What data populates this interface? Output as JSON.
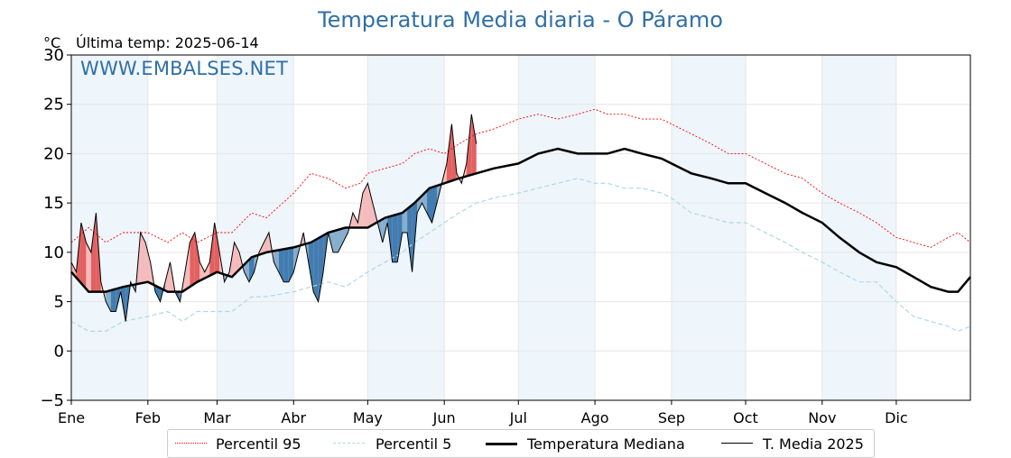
{
  "title": "Temperatura Media diaria - O Páramo",
  "unit_label": "°C",
  "last_temp_label": "Última temp: 2025-06-14",
  "watermark": "WWW.EMBALSES.NET",
  "legend": [
    {
      "label": "Percentil 95",
      "color": "#ff0000",
      "style": "dotted"
    },
    {
      "label": "Percentil 5",
      "color": "#add8e6",
      "style": "dashed"
    },
    {
      "label": "Temperatura Mediana",
      "color": "#000000",
      "style": "solid-thick"
    },
    {
      "label": "T. Media 2025",
      "color": "#000000",
      "style": "solid-thin"
    }
  ],
  "colors": {
    "above_fill": "#f4b5b5",
    "above_fill_strong": "#e05050",
    "below_fill": "#7aa6c8",
    "below_fill_strong": "#2f6fa7",
    "band": "#eef5fb",
    "title": "#2f6fa7"
  },
  "chart_data": {
    "type": "line",
    "x_unit": "day of year",
    "xlim": [
      1,
      365
    ],
    "ylim": [
      -5,
      30
    ],
    "yticks": [
      -5,
      0,
      5,
      10,
      15,
      20,
      25,
      30
    ],
    "ytick_labels": [
      "−5",
      "0",
      "5",
      "10",
      "15",
      "20",
      "25",
      "30"
    ],
    "months": [
      {
        "label": "Ene",
        "day": 1
      },
      {
        "label": "Feb",
        "day": 32
      },
      {
        "label": "Mar",
        "day": 60
      },
      {
        "label": "Abr",
        "day": 91
      },
      {
        "label": "May",
        "day": 121
      },
      {
        "label": "Jun",
        "day": 152
      },
      {
        "label": "Jul",
        "day": 182
      },
      {
        "label": "Ago",
        "day": 213
      },
      {
        "label": "Sep",
        "day": 244
      },
      {
        "label": "Oct",
        "day": 274
      },
      {
        "label": "Nov",
        "day": 305
      },
      {
        "label": "Dic",
        "day": 335
      }
    ],
    "grid": true,
    "series": [
      {
        "name": "Percentil 95",
        "x": [
          1,
          8,
          15,
          22,
          32,
          40,
          46,
          52,
          60,
          66,
          74,
          80,
          91,
          98,
          105,
          112,
          118,
          121,
          128,
          135,
          140,
          146,
          152,
          158,
          165,
          172,
          182,
          190,
          198,
          206,
          213,
          218,
          225,
          232,
          240,
          244,
          252,
          260,
          267,
          274,
          282,
          290,
          297,
          305,
          312,
          320,
          327,
          335,
          342,
          349,
          356,
          360,
          365
        ],
        "y": [
          11,
          12.5,
          11,
          12,
          12,
          11,
          12,
          11,
          12,
          12,
          14,
          13.5,
          16,
          18,
          17.5,
          16.5,
          17,
          18,
          18.5,
          19,
          20,
          20.5,
          20,
          21,
          22,
          22.5,
          23.5,
          24,
          23.5,
          24,
          24.5,
          24,
          24,
          23.5,
          23.5,
          23,
          22,
          21,
          20,
          20,
          19,
          18,
          17.5,
          16,
          15,
          14,
          13,
          11.5,
          11,
          10.5,
          11.5,
          12,
          11
        ]
      },
      {
        "name": "Percentil 5",
        "x": [
          1,
          8,
          15,
          22,
          32,
          40,
          46,
          52,
          60,
          66,
          74,
          80,
          91,
          98,
          105,
          112,
          118,
          121,
          128,
          135,
          140,
          146,
          152,
          158,
          165,
          172,
          182,
          190,
          198,
          206,
          213,
          218,
          225,
          232,
          240,
          244,
          252,
          260,
          267,
          274,
          282,
          290,
          297,
          305,
          312,
          320,
          327,
          335,
          342,
          349,
          356,
          360,
          365
        ],
        "y": [
          3,
          2,
          2,
          3,
          3.5,
          4,
          3,
          4,
          4,
          4,
          5.5,
          5.5,
          6,
          6.5,
          7,
          6.5,
          7.5,
          8,
          9,
          10,
          11,
          12,
          13,
          14,
          15,
          15.5,
          16,
          16.5,
          17,
          17.5,
          17,
          17,
          16.5,
          16.5,
          16,
          15.5,
          14,
          13.5,
          13,
          13,
          12,
          11,
          10,
          9,
          8,
          7,
          7,
          5,
          3.5,
          3,
          2.5,
          2,
          2.5
        ]
      },
      {
        "name": "Temperatura Mediana",
        "x": [
          1,
          8,
          15,
          22,
          32,
          40,
          46,
          52,
          60,
          66,
          74,
          80,
          91,
          98,
          105,
          112,
          118,
          121,
          128,
          135,
          140,
          146,
          152,
          158,
          165,
          172,
          182,
          190,
          198,
          206,
          213,
          218,
          225,
          232,
          240,
          244,
          252,
          260,
          267,
          274,
          282,
          290,
          297,
          305,
          312,
          320,
          327,
          335,
          342,
          349,
          356,
          360,
          365
        ],
        "y": [
          8,
          6,
          6,
          6.5,
          7,
          6,
          6,
          7,
          8,
          7.5,
          9.5,
          10,
          10.5,
          11,
          12,
          12.5,
          12.5,
          12.5,
          13.5,
          14,
          15,
          16.5,
          17,
          17.5,
          18,
          18.5,
          19,
          20,
          20.5,
          20,
          20,
          20,
          20.5,
          20,
          19.5,
          19,
          18,
          17.5,
          17,
          17,
          16,
          15,
          14,
          13,
          11.5,
          10,
          9,
          8.5,
          7.5,
          6.5,
          6,
          6,
          7.5
        ]
      },
      {
        "name": "T. Media 2025",
        "x": [
          1,
          3,
          5,
          7,
          9,
          11,
          13,
          15,
          17,
          19,
          21,
          23,
          25,
          27,
          29,
          31,
          33,
          35,
          37,
          39,
          41,
          43,
          45,
          47,
          49,
          51,
          53,
          55,
          57,
          59,
          61,
          63,
          65,
          67,
          69,
          71,
          73,
          75,
          77,
          79,
          81,
          83,
          85,
          87,
          89,
          91,
          93,
          95,
          97,
          99,
          101,
          103,
          105,
          107,
          109,
          111,
          113,
          115,
          117,
          119,
          121,
          123,
          125,
          127,
          129,
          131,
          133,
          135,
          137,
          139,
          141,
          143,
          145,
          147,
          149,
          151,
          153,
          155,
          157,
          159,
          161,
          163,
          165
        ],
        "y": [
          9,
          8,
          13,
          11,
          10,
          14,
          7,
          5,
          4,
          4,
          6,
          3,
          7,
          6,
          12,
          11,
          9,
          6,
          5,
          7,
          9,
          6,
          5,
          8,
          11,
          12,
          9,
          8,
          9,
          13,
          10,
          7,
          8,
          11,
          10,
          8,
          7,
          8,
          10,
          11,
          12,
          9,
          8,
          7,
          7,
          8,
          10,
          12,
          9,
          6,
          5,
          8,
          12,
          10,
          10,
          11,
          12,
          14,
          13,
          16,
          17,
          15,
          13,
          11,
          13,
          9,
          9,
          12,
          12,
          8,
          14,
          15,
          14,
          13,
          15,
          17,
          19,
          23,
          18,
          17,
          19,
          24,
          21
        ]
      }
    ]
  }
}
